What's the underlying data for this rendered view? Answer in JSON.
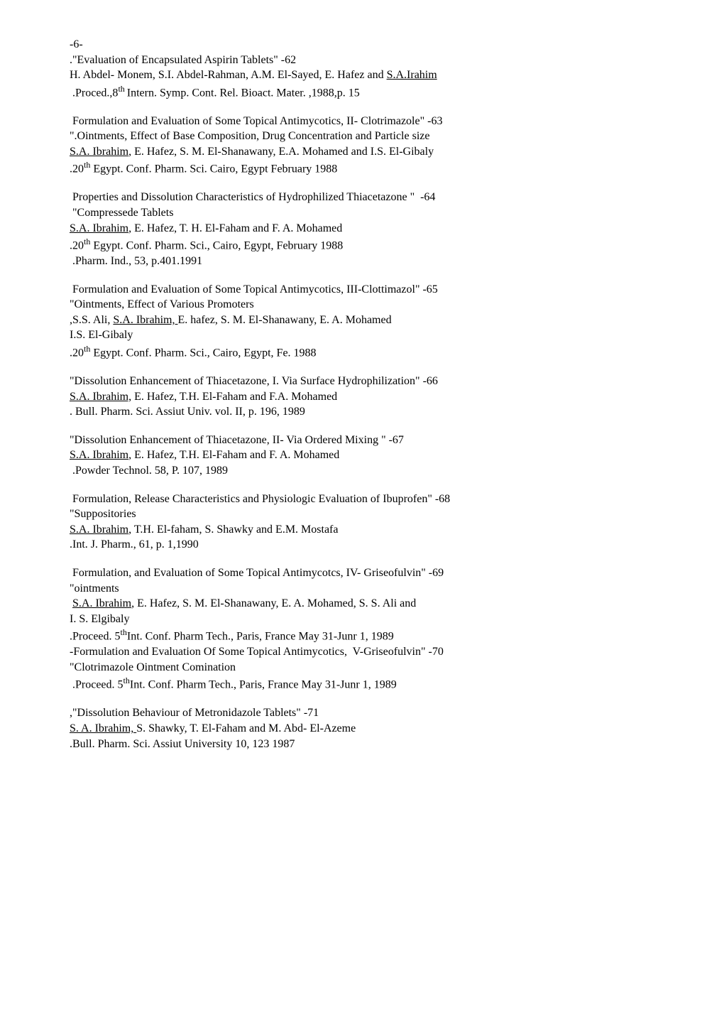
{
  "page_marker": "-6-",
  "entries": [
    {
      "lines": [
        [
          {
            "t": ".\"Evaluation of Encapsulated Aspirin Tablets\" -62"
          }
        ],
        [
          {
            "t": "H. Abdel- Monem, S.I. Abdel-Rahman, A.M. El-Sayed, E. Hafez and "
          },
          {
            "t": "S.A.Irahim",
            "u": true
          }
        ],
        [
          {
            "t": " .Proced.,8"
          },
          {
            "t": "th ",
            "sup": true
          },
          {
            "t": "Intern. Symp. Cont. Rel. Bioact. Mater. ,1988,p. 15"
          }
        ]
      ]
    },
    {
      "lines": [
        [
          {
            "t": " Formulation and Evaluation of Some Topical Antimycotics, II- Clotrimazole\" -63"
          }
        ],
        [
          {
            "t": "\".Ointments, Effect of Base Composition, Drug Concentration and Particle size"
          }
        ],
        [
          {
            "t": "S.A. Ibrahim",
            "u": true
          },
          {
            "t": ", E. Hafez, S. M. El-Shanawany, E.A. Mohamed and I.S. El-Gibaly"
          }
        ],
        [
          {
            "t": ".20"
          },
          {
            "t": "th",
            "sup": true
          },
          {
            "t": " Egypt. Conf. Pharm. Sci. Cairo, Egypt February 1988"
          }
        ]
      ]
    },
    {
      "lines": [
        [
          {
            "t": " Properties and Dissolution Characteristics of Hydrophilized Thiacetazone \"  -64"
          }
        ],
        [
          {
            "t": " \"Compressede Tablets"
          }
        ],
        [
          {
            "t": "S.A. Ibrahim",
            "u": true
          },
          {
            "t": ", E. Hafez, T. H. El-Faham and F. A. Mohamed"
          }
        ],
        [
          {
            "t": ".20"
          },
          {
            "t": "th",
            "sup": true
          },
          {
            "t": " Egypt. Conf. Pharm. Sci., Cairo, Egypt, February 1988"
          }
        ],
        [
          {
            "t": " .Pharm. Ind., 53, p.401.1991"
          }
        ]
      ]
    },
    {
      "lines": [
        [
          {
            "t": " Formulation and Evaluation of Some Topical Antimycotics, III-Clottimazol\" -65"
          }
        ],
        [
          {
            "t": "\"Ointments, Effect of Various Promoters"
          }
        ],
        [
          {
            "t": ",S.S. Ali, "
          },
          {
            "t": "S.A. Ibrahim, ",
            "u": true
          },
          {
            "t": "E. hafez, S. M. El-Shanawany, E. A. Mohamed"
          }
        ],
        [
          {
            "t": "I.S. El-Gibaly"
          }
        ],
        [
          {
            "t": ".20"
          },
          {
            "t": "th",
            "sup": true
          },
          {
            "t": " Egypt. Conf. Pharm. Sci., Cairo, Egypt, Fe. 1988"
          }
        ]
      ]
    },
    {
      "lines": [
        [
          {
            "t": "\"Dissolution Enhancement of Thiacetazone, I. Via Surface Hydrophilization\" -66"
          }
        ],
        [
          {
            "t": "S.A. Ibrahim,",
            "u": true
          },
          {
            "t": " E. Hafez, T.H. El-Faham and F.A. Mohamed"
          }
        ],
        [
          {
            "t": ". Bull. Pharm. Sci. Assiut Univ. vol. II, p. 196, 1989"
          }
        ]
      ]
    },
    {
      "lines": [
        [
          {
            "t": "\"Dissolution Enhancement of Thiacetazone, II- Via Ordered Mixing \" -67"
          }
        ],
        [
          {
            "t": "S.A. Ibrahim",
            "u": true
          },
          {
            "t": ", E. Hafez, T.H. El-Faham and F. A. Mohamed"
          }
        ],
        [
          {
            "t": " .Powder Technol. 58, P. 107, 1989"
          }
        ]
      ]
    },
    {
      "lines": [
        [
          {
            "t": " Formulation, Release Characteristics and Physiologic Evaluation of Ibuprofen\" -68"
          }
        ],
        [
          {
            "t": "\"Suppositories"
          }
        ],
        [
          {
            "t": "S.A. Ibrahim",
            "u": true
          },
          {
            "t": ", T.H. El-faham, S. Shawky and E.M. Mostafa"
          }
        ],
        [
          {
            "t": ".Int. J. Pharm., 61, p. 1,1990"
          }
        ]
      ]
    },
    {
      "lines": [
        [
          {
            "t": " Formulation, and Evaluation of Some Topical Antimycotcs, IV- Griseofulvin\" -69"
          }
        ],
        [
          {
            "t": "\"ointments"
          }
        ],
        [
          {
            "t": " "
          },
          {
            "t": "S.A. Ibrahim",
            "u": true
          },
          {
            "t": ", E. Hafez, S. M. El-Shanawany, E. A. Mohamed, S. S. Ali and"
          }
        ],
        [
          {
            "t": "I. S. Elgibaly"
          }
        ],
        [
          {
            "t": ".Proceed. 5"
          },
          {
            "t": "th",
            "sup": true
          },
          {
            "t": "Int. Conf. Pharm Tech., Paris, France May 31-Junr 1, 1989"
          }
        ],
        [
          {
            "t": "-Formulation and Evaluation Of Some Topical Antimycotics,  V-Griseofulvin\" -70"
          }
        ],
        [
          {
            "t": "\"Clotrimazole Ointment Comination"
          }
        ],
        [
          {
            "t": " .Proceed. 5"
          },
          {
            "t": "th",
            "sup": true
          },
          {
            "t": "Int. Conf. Pharm Tech., Paris, France May 31-Junr 1, 1989"
          }
        ]
      ]
    },
    {
      "lines": [
        [
          {
            "t": ",\"Dissolution Behaviour of Metronidazole Tablets\" -71"
          }
        ],
        [
          {
            "t": "S. A. Ibrahim, ",
            "u": true
          },
          {
            "t": "S. Shawky, T. El-Faham and M. Abd- El-Azeme"
          }
        ],
        [
          {
            "t": ".Bull. Pharm. Sci. Assiut University 10, 123 1987"
          }
        ]
      ]
    }
  ]
}
